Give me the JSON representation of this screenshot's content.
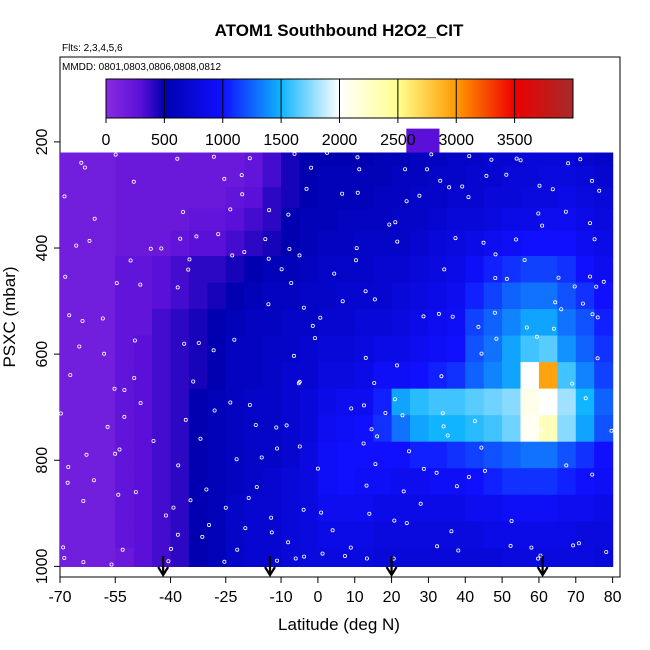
{
  "chart_data": {
    "type": "heatmap",
    "title": "ATOM1 Southbound H2O2_CIT",
    "flights_label": "Flts: 2,3,4,5,6",
    "mmdd_label": "MMDD: 0801,0803,0806,0808,0812",
    "xlabel": "Latitude (deg N)",
    "ylabel": "PSXC (mbar)",
    "xlim": [
      -70,
      82
    ],
    "ylim": [
      1020,
      40
    ],
    "y_reversed": true,
    "x_ticks": [
      -70,
      -55,
      -40,
      -25,
      -10,
      0,
      10,
      20,
      30,
      40,
      50,
      60,
      70,
      80
    ],
    "y_ticks": [
      200,
      400,
      600,
      800,
      1000
    ],
    "colorbar": {
      "range": [
        0,
        4000
      ],
      "ticks": [
        0,
        500,
        1000,
        1500,
        2000,
        2500,
        3000,
        3500
      ],
      "stops": [
        {
          "value": 0,
          "color": "#8a2be2"
        },
        {
          "value": 300,
          "color": "#5a10d8"
        },
        {
          "value": 500,
          "color": "#0000b0"
        },
        {
          "value": 1000,
          "color": "#1010ff"
        },
        {
          "value": 1500,
          "color": "#10b4ff"
        },
        {
          "value": 2000,
          "color": "#ffffff"
        },
        {
          "value": 2500,
          "color": "#ffff90"
        },
        {
          "value": 3000,
          "color": "#ff9a00"
        },
        {
          "value": 3500,
          "color": "#ee0000"
        },
        {
          "value": 4000,
          "color": "#a52a2a"
        }
      ]
    },
    "pressure_levels": [
      225,
      265,
      305,
      345,
      390,
      440,
      490,
      540,
      590,
      640,
      690,
      740,
      790,
      840,
      890,
      940,
      990
    ],
    "lat_bins": [
      -70,
      -65,
      -60,
      -55,
      -50,
      -45,
      -40,
      -35,
      -30,
      -25,
      -20,
      -15,
      -10,
      -5,
      0,
      5,
      10,
      15,
      20,
      25,
      30,
      35,
      40,
      45,
      50,
      55,
      60,
      65,
      70,
      75,
      80
    ],
    "series": [
      {
        "lat_range": [
          -70,
          -65
        ],
        "values": [
          150,
          150,
          150,
          150,
          150,
          150,
          150,
          150,
          150,
          150,
          150,
          150,
          150,
          150,
          150,
          150,
          150
        ]
      },
      {
        "lat_range": [
          -65,
          -60
        ],
        "values": [
          150,
          150,
          150,
          150,
          150,
          150,
          150,
          150,
          150,
          150,
          150,
          150,
          150,
          150,
          150,
          150,
          150
        ]
      },
      {
        "lat_range": [
          -60,
          -55
        ],
        "values": [
          150,
          150,
          150,
          150,
          150,
          150,
          150,
          150,
          150,
          150,
          150,
          150,
          150,
          150,
          150,
          150,
          150
        ]
      },
      {
        "lat_range": [
          -55,
          -50
        ],
        "values": [
          200,
          200,
          200,
          200,
          200,
          250,
          250,
          250,
          250,
          250,
          250,
          250,
          250,
          250,
          250,
          250,
          200
        ]
      },
      {
        "lat_range": [
          -50,
          -45
        ],
        "values": [
          200,
          200,
          200,
          200,
          200,
          250,
          250,
          250,
          300,
          300,
          300,
          300,
          300,
          300,
          300,
          300,
          300
        ]
      },
      {
        "lat_range": [
          -45,
          -40
        ],
        "values": [
          200,
          200,
          200,
          200,
          200,
          300,
          300,
          350,
          350,
          350,
          350,
          350,
          350,
          350,
          350,
          350,
          350
        ]
      },
      {
        "lat_range": [
          -40,
          -35
        ],
        "values": [
          200,
          200,
          200,
          200,
          250,
          350,
          350,
          400,
          400,
          400,
          400,
          400,
          400,
          400,
          400,
          400,
          400
        ]
      },
      {
        "lat_range": [
          -35,
          -30
        ],
        "values": [
          200,
          200,
          200,
          250,
          300,
          400,
          400,
          450,
          450,
          450,
          500,
          500,
          500,
          500,
          500,
          500,
          500
        ]
      },
      {
        "lat_range": [
          -30,
          -25
        ],
        "values": [
          200,
          200,
          200,
          250,
          300,
          400,
          450,
          500,
          500,
          500,
          550,
          550,
          550,
          550,
          550,
          550,
          550
        ]
      },
      {
        "lat_range": [
          -25,
          -20
        ],
        "values": [
          200,
          200,
          250,
          300,
          350,
          450,
          500,
          550,
          600,
          600,
          600,
          600,
          600,
          600,
          650,
          650,
          650
        ]
      },
      {
        "lat_range": [
          -20,
          -15
        ],
        "values": [
          250,
          250,
          300,
          350,
          400,
          500,
          550,
          600,
          600,
          600,
          650,
          650,
          650,
          650,
          700,
          700,
          700
        ]
      },
      {
        "lat_range": [
          -15,
          -10
        ],
        "values": [
          350,
          350,
          400,
          400,
          450,
          550,
          600,
          600,
          650,
          650,
          650,
          650,
          650,
          700,
          700,
          700,
          700
        ]
      },
      {
        "lat_range": [
          -10,
          -5
        ],
        "values": [
          450,
          450,
          450,
          500,
          500,
          550,
          600,
          650,
          650,
          700,
          700,
          700,
          700,
          750,
          750,
          750,
          750
        ]
      },
      {
        "lat_range": [
          -5,
          0
        ],
        "values": [
          500,
          500,
          500,
          550,
          550,
          600,
          650,
          650,
          700,
          700,
          750,
          750,
          800,
          800,
          800,
          800,
          800
        ]
      },
      {
        "lat_range": [
          0,
          5
        ],
        "values": [
          500,
          550,
          550,
          550,
          600,
          650,
          650,
          700,
          750,
          800,
          850,
          900,
          950,
          950,
          900,
          850,
          800
        ]
      },
      {
        "lat_range": [
          5,
          10
        ],
        "values": [
          500,
          550,
          550,
          600,
          600,
          650,
          700,
          700,
          750,
          800,
          900,
          950,
          1000,
          1000,
          900,
          850,
          800
        ]
      },
      {
        "lat_range": [
          10,
          15
        ],
        "values": [
          500,
          550,
          550,
          600,
          650,
          650,
          700,
          750,
          800,
          850,
          900,
          1000,
          1000,
          950,
          900,
          850,
          800
        ]
      },
      {
        "lat_range": [
          15,
          20
        ],
        "values": [
          550,
          550,
          600,
          600,
          650,
          700,
          700,
          750,
          850,
          950,
          1050,
          1100,
          1000,
          950,
          850,
          800,
          750
        ]
      },
      {
        "lat_range": [
          20,
          25
        ],
        "values": [
          550,
          600,
          600,
          650,
          650,
          700,
          750,
          800,
          850,
          950,
          1450,
          1300,
          1000,
          900,
          850,
          800,
          750
        ]
      },
      {
        "lat_range": [
          25,
          30
        ],
        "values": [
          600,
          600,
          650,
          650,
          700,
          750,
          800,
          850,
          900,
          1000,
          1550,
          1450,
          1050,
          900,
          850,
          800,
          750
        ]
      },
      {
        "lat_range": [
          30,
          35
        ],
        "values": [
          600,
          650,
          650,
          700,
          750,
          800,
          850,
          900,
          950,
          1050,
          1600,
          1500,
          1050,
          950,
          850,
          800,
          750
        ]
      },
      {
        "lat_range": [
          35,
          40
        ],
        "values": [
          650,
          650,
          700,
          750,
          800,
          850,
          900,
          950,
          1000,
          1100,
          1600,
          1500,
          1100,
          950,
          850,
          800,
          750
        ]
      },
      {
        "lat_range": [
          40,
          45
        ],
        "values": [
          650,
          700,
          700,
          750,
          850,
          950,
          1050,
          1150,
          1200,
          1250,
          1650,
          1550,
          1150,
          1000,
          900,
          800,
          750
        ]
      },
      {
        "lat_range": [
          45,
          50
        ],
        "values": [
          700,
          700,
          750,
          800,
          900,
          1050,
          1150,
          1250,
          1300,
          1350,
          1700,
          1600,
          1200,
          1050,
          900,
          850,
          750
        ]
      },
      {
        "lat_range": [
          50,
          55
        ],
        "values": [
          700,
          750,
          750,
          850,
          950,
          1100,
          1250,
          1350,
          1450,
          1450,
          1750,
          1700,
          1250,
          1100,
          950,
          850,
          800
        ]
      },
      {
        "lat_range": [
          55,
          60
        ],
        "values": [
          750,
          750,
          800,
          850,
          1000,
          1150,
          1300,
          1450,
          1600,
          2000,
          2100,
          2050,
          1300,
          1100,
          950,
          850,
          800
        ]
      },
      {
        "lat_range": [
          60,
          65
        ],
        "values": [
          750,
          800,
          800,
          900,
          1000,
          1150,
          1300,
          1450,
          1650,
          2950,
          2000,
          2300,
          1300,
          1100,
          950,
          850,
          800
        ]
      },
      {
        "lat_range": [
          65,
          70
        ],
        "values": [
          750,
          800,
          850,
          900,
          1000,
          1100,
          1200,
          1300,
          1400,
          1600,
          1800,
          1750,
          1200,
          1050,
          900,
          850,
          800
        ]
      },
      {
        "lat_range": [
          70,
          75
        ],
        "values": [
          700,
          750,
          800,
          850,
          900,
          1000,
          1100,
          1200,
          1250,
          1350,
          1500,
          1450,
          1100,
          1000,
          900,
          800,
          800
        ]
      },
      {
        "lat_range": [
          75,
          80
        ],
        "values": [
          650,
          700,
          750,
          800,
          850,
          900,
          1000,
          1050,
          1100,
          1150,
          1250,
          1200,
          1000,
          950,
          850,
          800,
          750
        ]
      }
    ],
    "top_cap": {
      "lat_range": [
        24,
        33
      ],
      "p_range": [
        175,
        220
      ],
      "value": 300
    },
    "flight_markers_lat": [
      -42,
      -13,
      20,
      61
    ]
  }
}
